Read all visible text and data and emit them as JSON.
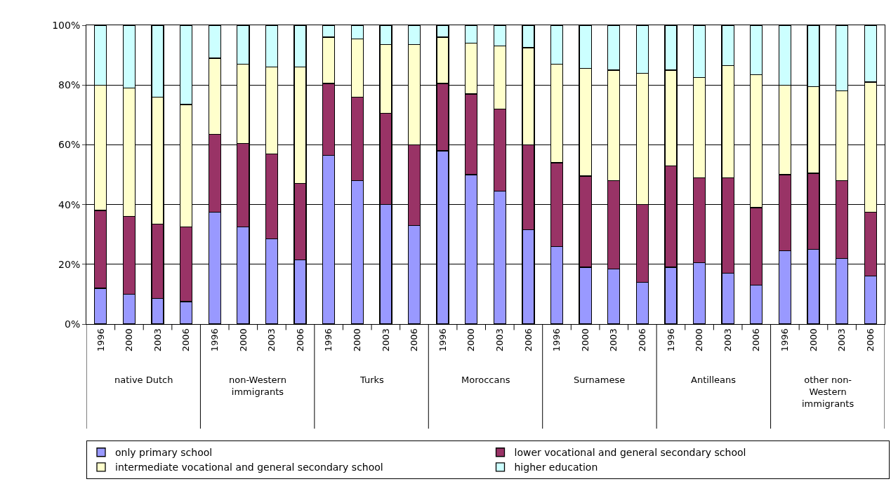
{
  "chart_data": {
    "type": "bar",
    "stacked": true,
    "categories": [
      "1996",
      "2000",
      "2003",
      "2006",
      "1996",
      "2000",
      "2003",
      "2006",
      "1996",
      "2000",
      "2003",
      "2006",
      "1996",
      "2000",
      "2003",
      "2006",
      "1996",
      "2000",
      "2003",
      "2006",
      "1996",
      "2000",
      "2003",
      "2006",
      "1996",
      "2000",
      "2003",
      "2006"
    ],
    "annotations": [
      "native Dutch",
      "non-Western immigrants",
      "Turks",
      "Moroccans",
      "Surnamese",
      "Antilleans",
      "other non-Western immigrants"
    ],
    "series": [
      {
        "name": "only primary school",
        "color": "#9999ff",
        "values": [
          12,
          10,
          8.5,
          7.5,
          37.5,
          32.5,
          28.5,
          21.5,
          56.5,
          48,
          40,
          33,
          58,
          50,
          44.5,
          31.5,
          26,
          19,
          18.5,
          14,
          19,
          20.5,
          17,
          13,
          24.5,
          25,
          22,
          16
        ]
      },
      {
        "name": "lower vocational and general secondary school",
        "color": "#993366",
        "values": [
          26,
          26,
          25,
          25,
          26,
          28,
          28.5,
          25.5,
          24,
          28,
          30.5,
          27,
          22.5,
          27,
          27.5,
          28.5,
          28,
          30.5,
          29.5,
          26,
          34,
          28.5,
          32,
          26,
          25.5,
          25.5,
          26,
          21.5
        ]
      },
      {
        "name": "intermediate vocational and general secondary school",
        "color": "#ffffcc",
        "values": [
          42,
          43,
          42.5,
          41,
          25.5,
          26.5,
          29,
          39,
          15.5,
          19.5,
          23,
          33.5,
          15.5,
          17,
          21,
          32.5,
          33,
          36,
          37,
          44,
          32,
          33.5,
          37.5,
          44.5,
          30,
          29,
          30,
          43.5
        ]
      },
      {
        "name": "higher education",
        "color": "#ccffff",
        "values": [
          20,
          21,
          24,
          26.5,
          11,
          13,
          14,
          14,
          4,
          4.5,
          6.5,
          6.5,
          4,
          6,
          7,
          7.5,
          13,
          14.5,
          15,
          16,
          15,
          17.5,
          13.5,
          16.5,
          20,
          20.5,
          22,
          19
        ]
      }
    ],
    "ylim": [
      0,
      100
    ],
    "yticks": [
      {
        "value": 0,
        "label": "0%"
      },
      {
        "value": 20,
        "label": "20%"
      },
      {
        "value": 40,
        "label": "40%"
      },
      {
        "value": 60,
        "label": "60%"
      },
      {
        "value": 80,
        "label": "80%"
      },
      {
        "value": 100,
        "label": "100%"
      }
    ],
    "grid": "y",
    "legend": "bottom"
  }
}
